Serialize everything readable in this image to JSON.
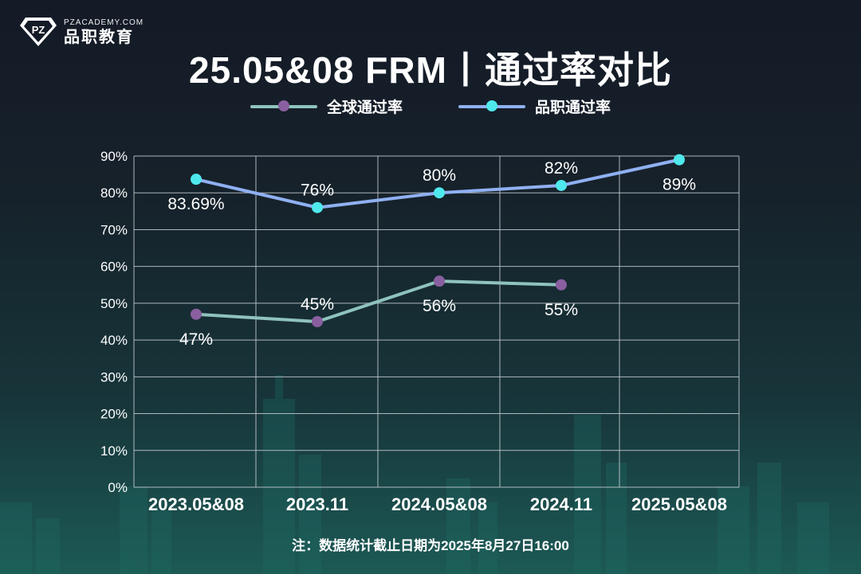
{
  "brand": {
    "logo_mark": "PZ",
    "name_en": "PZACADEMY.COM",
    "name_cn": "品职教育"
  },
  "title": "25.05&08 FRM丨通过率对比",
  "footnote": "注：数据统计截止日期为2025年8月27日16:00",
  "colors": {
    "global_line": "#8fc3bd",
    "global_marker": "#8a5fa0",
    "pz_line": "#8fb0f2",
    "pz_marker": "#4fe8ec",
    "grid": "#c9cfd4"
  },
  "chart_data": {
    "type": "line",
    "title": "25.05&08 FRM丨通过率对比",
    "categories": [
      "2023.05&08",
      "2023.11",
      "2024.05&08",
      "2024.11",
      "2025.05&08"
    ],
    "ylim": [
      0,
      90
    ],
    "yticks": [
      0,
      10,
      20,
      30,
      40,
      50,
      60,
      70,
      80,
      90
    ],
    "ytick_labels": [
      "0%",
      "10%",
      "20%",
      "30%",
      "40%",
      "50%",
      "60%",
      "70%",
      "80%",
      "90%"
    ],
    "grid": true,
    "legend_position": "top-center",
    "series": [
      {
        "name": "全球通过率",
        "values": [
          47,
          45,
          56,
          55,
          null
        ],
        "labels": [
          "47%",
          "45%",
          "56%",
          "55%",
          ""
        ]
      },
      {
        "name": "品职通过率",
        "values": [
          83.69,
          76,
          80,
          82,
          89
        ],
        "labels": [
          "83.69%",
          "76%",
          "80%",
          "82%",
          "89%"
        ]
      }
    ]
  }
}
